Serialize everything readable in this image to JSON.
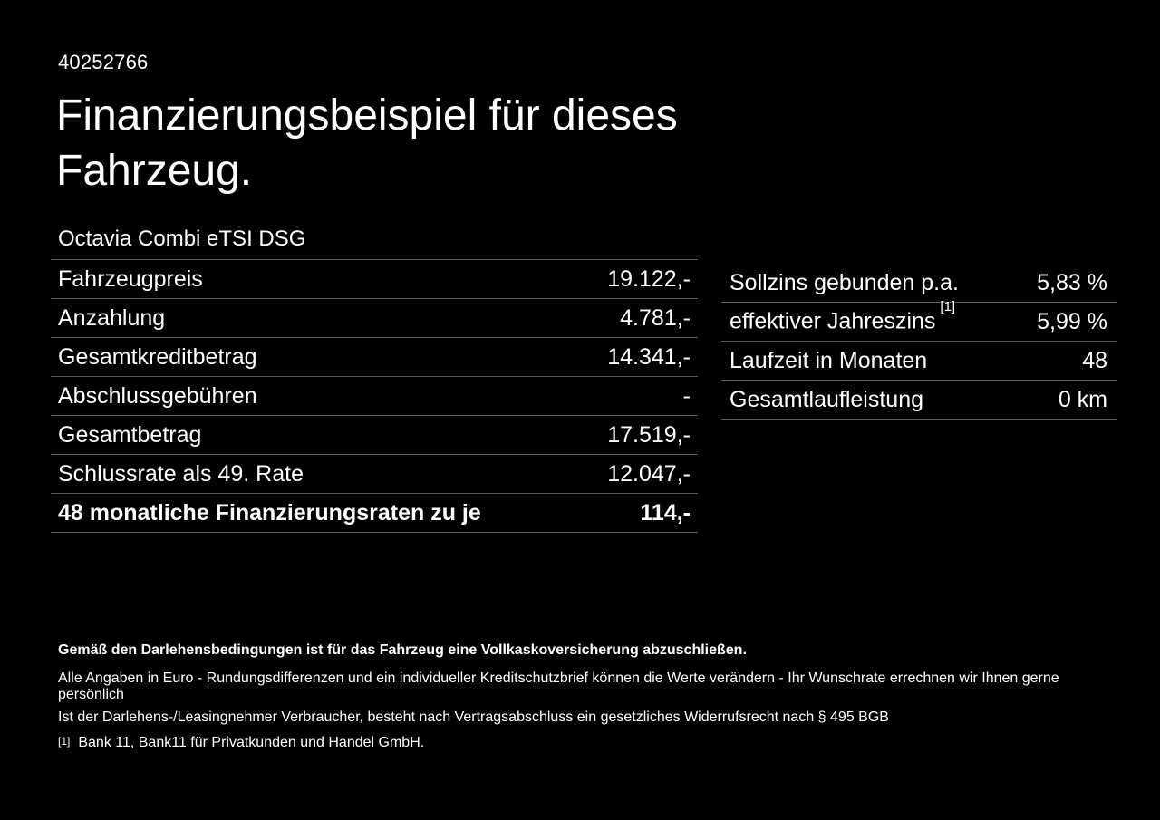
{
  "page": {
    "background_color": "#000000",
    "text_color": "#ffffff",
    "divider_color": "#585858"
  },
  "header": {
    "document_id": "40252766",
    "title_line1": "Finanzierungsbeispiel für dieses",
    "title_line2": "Fahrzeug."
  },
  "vehicle": {
    "model": "Octavia Combi eTSI DSG"
  },
  "finance_table": {
    "rows": [
      {
        "label": "Fahrzeugpreis",
        "value": "19.122,-",
        "emphasis": false
      },
      {
        "label": "Anzahlung",
        "value": "4.781,-",
        "emphasis": false
      },
      {
        "label": "Gesamtkreditbetrag",
        "value": "14.341,-",
        "emphasis": false
      },
      {
        "label": "Abschlussgebühren",
        "value": "-",
        "emphasis": false
      },
      {
        "label": "Gesamtbetrag",
        "value": "17.519,-",
        "emphasis": false
      },
      {
        "label": "Schlussrate als 49. Rate",
        "value": "12.047,-",
        "emphasis": false
      },
      {
        "label": "48 monatliche Finanzierungsraten zu je",
        "value": "114,-",
        "emphasis": true
      }
    ]
  },
  "conditions_table": {
    "rows": [
      {
        "label": "Sollzins gebunden p.a.",
        "value": "5,83 %"
      },
      {
        "label": "effektiver Jahreszins",
        "superscript": "[1]",
        "value": "5,99 %"
      },
      {
        "label": "Laufzeit in Monaten",
        "value": "48"
      },
      {
        "label": "Gesamtlaufleistung",
        "value": "0 km"
      }
    ]
  },
  "footnotes": {
    "bold_note": "Gemäß den Darlehensbedingungen ist für das Fahrzeug eine Vollkaskoversicherung abzuschließen.",
    "note1": "Alle Angaben in Euro - Rundungsdifferenzen und ein individueller Kreditschutzbrief können die Werte verändern - Ihr Wunschrate errechnen wir Ihnen gerne persönlich",
    "note2": "Ist der Darlehens-/Leasingnehmer Verbraucher, besteht nach Vertragsabschluss ein gesetzliches Widerrufsrecht nach § 495 BGB",
    "reference_marker": "[1]",
    "reference_text": "Bank 11, Bank11 für Privatkunden und Handel GmbH."
  }
}
